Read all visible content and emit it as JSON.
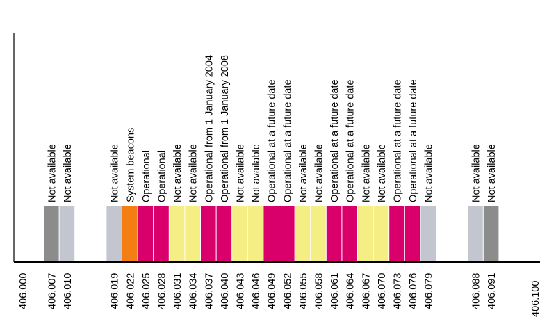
{
  "colors": {
    "not_available_dark": "#8c8c8c",
    "not_available_light": "#c3c6cf",
    "system_beacons": "#f47d14",
    "operational": "#d9006b",
    "future": "#f4ee85",
    "axis": "#000000"
  },
  "axis": {
    "start_label": "406.000",
    "end_label": "406.100"
  },
  "channels": [
    {
      "freq": "406.007",
      "status": "Not available",
      "color_key": "not_available_dark"
    },
    {
      "freq": "406.010",
      "status": "Not available",
      "color_key": "not_available_light"
    },
    {
      "freq": "406.019",
      "status": "Not available",
      "color_key": "not_available_light"
    },
    {
      "freq": "406.022",
      "status": "System beacons",
      "color_key": "system_beacons"
    },
    {
      "freq": "406.025",
      "status": "Operational",
      "color_key": "operational"
    },
    {
      "freq": "406.028",
      "status": "Operational",
      "color_key": "operational"
    },
    {
      "freq": "406.031",
      "status": "Not available",
      "color_key": "future"
    },
    {
      "freq": "406.034",
      "status": "Not available",
      "color_key": "future"
    },
    {
      "freq": "406.037",
      "status": "Operational from 1 January 2004",
      "color_key": "operational"
    },
    {
      "freq": "406.040",
      "status": "Operational from 1 January 2008",
      "color_key": "operational"
    },
    {
      "freq": "406.043",
      "status": "Not available",
      "color_key": "future"
    },
    {
      "freq": "406.046",
      "status": "Not available",
      "color_key": "future"
    },
    {
      "freq": "406.049",
      "status": "Operational at a future date",
      "color_key": "operational"
    },
    {
      "freq": "406.052",
      "status": "Operational at a future date",
      "color_key": "operational"
    },
    {
      "freq": "406.055",
      "status": "Not available",
      "color_key": "future"
    },
    {
      "freq": "406.058",
      "status": "Not available",
      "color_key": "future"
    },
    {
      "freq": "406.061",
      "status": "Operational at a future date",
      "color_key": "operational"
    },
    {
      "freq": "406.064",
      "status": "Operational at a future date",
      "color_key": "operational"
    },
    {
      "freq": "406.067",
      "status": "Not available",
      "color_key": "future"
    },
    {
      "freq": "406.070",
      "status": "Not available",
      "color_key": "future"
    },
    {
      "freq": "406.073",
      "status": "Operational at a future date",
      "color_key": "operational"
    },
    {
      "freq": "406.076",
      "status": "Operational at a future date",
      "color_key": "operational"
    },
    {
      "freq": "406.079",
      "status": "Not available",
      "color_key": "not_available_light"
    },
    {
      "freq": "406.088",
      "status": "Not available",
      "color_key": "not_available_light"
    },
    {
      "freq": "406.091",
      "status": "Not available",
      "color_key": "not_available_dark"
    }
  ]
}
